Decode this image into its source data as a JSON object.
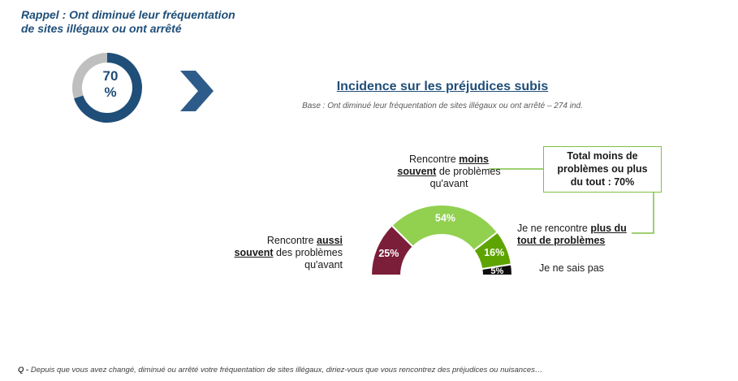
{
  "rappel": {
    "line1": "Rappel : Ont diminué leur fréquentation",
    "line2": "de sites illégaux ou ont arrêté"
  },
  "donut": {
    "value": 70,
    "label_line1": "70",
    "label_line2": "%",
    "colors": {
      "filled": "#1f4e79",
      "rest": "#bfbfbf"
    }
  },
  "chevron": {
    "icon": "chevron-right-icon",
    "color": "#2e5c8a"
  },
  "chart": {
    "title": "Incidence sur les préjudices subis",
    "base": "Base : Ont diminué leur fréquentation de sites illégaux ou ont arrêté – 274 ind."
  },
  "chart_data": {
    "type": "pie",
    "layout": "semicircle",
    "title": "Incidence sur les préjudices subis",
    "categories": [
      "Rencontre aussi souvent des problèmes qu'avant",
      "Rencontre moins souvent de problèmes qu'avant",
      "Je ne rencontre plus du tout de problèmes",
      "Je ne sais pas"
    ],
    "values": [
      25,
      54,
      16,
      5
    ],
    "value_labels": [
      "25%",
      "54%",
      "16%",
      "5%"
    ],
    "colors": [
      "#7b1e3a",
      "#92d050",
      "#5ea400",
      "#0d0d0d"
    ]
  },
  "labels": {
    "moins": {
      "pre": "Rencontre ",
      "bold": "moins",
      "bold2": "souvent",
      "post": " de problèmes",
      "last": "qu'avant"
    },
    "aussi": {
      "pre": "Rencontre ",
      "bold": "aussi",
      "bold2": "souvent",
      "post": " des problèmes",
      "last": "qu'avant"
    },
    "plus": {
      "pre": "Je ne rencontre ",
      "bold": "plus du",
      "bold2": "tout de problèmes"
    },
    "nsp": "Je ne sais pas"
  },
  "total_box": {
    "line1": "Total moins de",
    "line2": "problèmes ou plus",
    "line3": "du tout : 70%",
    "border_color": "#7dc142"
  },
  "footnote": {
    "prefix": "Q - ",
    "text": "Depuis que vous avez changé, diminué ou arrêté votre fréquentation de sites illégaux, diriez-vous que vous rencontrez des préjudices ou nuisances…"
  }
}
